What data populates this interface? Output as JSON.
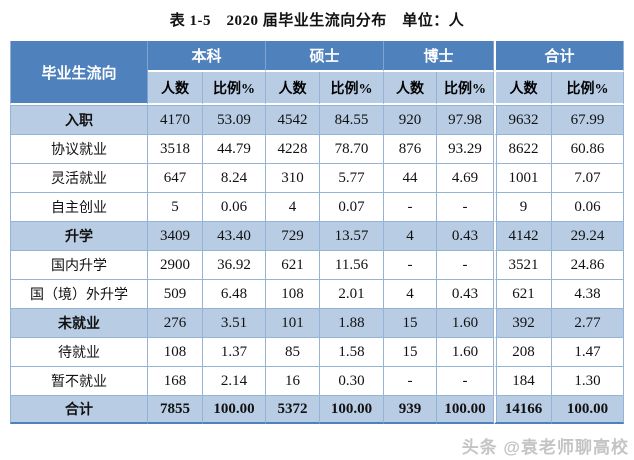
{
  "title": "表 1-5　2020 届毕业生流向分布　单位：人",
  "watermark": "头条 @袁老师聊高校",
  "colors": {
    "header_bg": "#4f81bd",
    "highlight_bg": "#b8cce4",
    "grid_border": "#95b3d7",
    "header_text": "#ffffff",
    "body_text": "#111111",
    "watermark_text": "#c4c4c6"
  },
  "chart_data": {
    "type": "table",
    "title": "表 1-5 2020 届毕业生流向分布",
    "unit": "单位：人",
    "row_header": "毕业生流向",
    "column_groups": [
      "本科",
      "硕士",
      "博士",
      "合计"
    ],
    "sub_columns": [
      "人数",
      "比例%"
    ],
    "rows": [
      {
        "label": "入职",
        "bold": true,
        "highlight": true,
        "bold_values": false,
        "values": [
          "4170",
          "53.09",
          "4542",
          "84.55",
          "920",
          "97.98",
          "9632",
          "67.99"
        ]
      },
      {
        "label": "协议就业",
        "bold": false,
        "highlight": false,
        "bold_values": false,
        "values": [
          "3518",
          "44.79",
          "4228",
          "78.70",
          "876",
          "93.29",
          "8622",
          "60.86"
        ]
      },
      {
        "label": "灵活就业",
        "bold": false,
        "highlight": false,
        "bold_values": false,
        "values": [
          "647",
          "8.24",
          "310",
          "5.77",
          "44",
          "4.69",
          "1001",
          "7.07"
        ]
      },
      {
        "label": "自主创业",
        "bold": false,
        "highlight": false,
        "bold_values": false,
        "values": [
          "5",
          "0.06",
          "4",
          "0.07",
          "-",
          "-",
          "9",
          "0.06"
        ]
      },
      {
        "label": "升学",
        "bold": true,
        "highlight": true,
        "bold_values": false,
        "values": [
          "3409",
          "43.40",
          "729",
          "13.57",
          "4",
          "0.43",
          "4142",
          "29.24"
        ]
      },
      {
        "label": "国内升学",
        "bold": false,
        "highlight": false,
        "bold_values": false,
        "values": [
          "2900",
          "36.92",
          "621",
          "11.56",
          "-",
          "-",
          "3521",
          "24.86"
        ]
      },
      {
        "label": "国（境）外升学",
        "bold": false,
        "highlight": false,
        "bold_values": false,
        "values": [
          "509",
          "6.48",
          "108",
          "2.01",
          "4",
          "0.43",
          "621",
          "4.38"
        ]
      },
      {
        "label": "未就业",
        "bold": true,
        "highlight": true,
        "bold_values": false,
        "values": [
          "276",
          "3.51",
          "101",
          "1.88",
          "15",
          "1.60",
          "392",
          "2.77"
        ]
      },
      {
        "label": "待就业",
        "bold": false,
        "highlight": false,
        "bold_values": false,
        "values": [
          "108",
          "1.37",
          "85",
          "1.58",
          "15",
          "1.60",
          "208",
          "1.47"
        ]
      },
      {
        "label": "暂不就业",
        "bold": false,
        "highlight": false,
        "bold_values": false,
        "values": [
          "168",
          "2.14",
          "16",
          "0.30",
          "-",
          "-",
          "184",
          "1.30"
        ]
      },
      {
        "label": "合计",
        "bold": true,
        "highlight": true,
        "bold_values": true,
        "values": [
          "7855",
          "100.00",
          "5372",
          "100.00",
          "939",
          "100.00",
          "14166",
          "100.00"
        ]
      }
    ]
  }
}
